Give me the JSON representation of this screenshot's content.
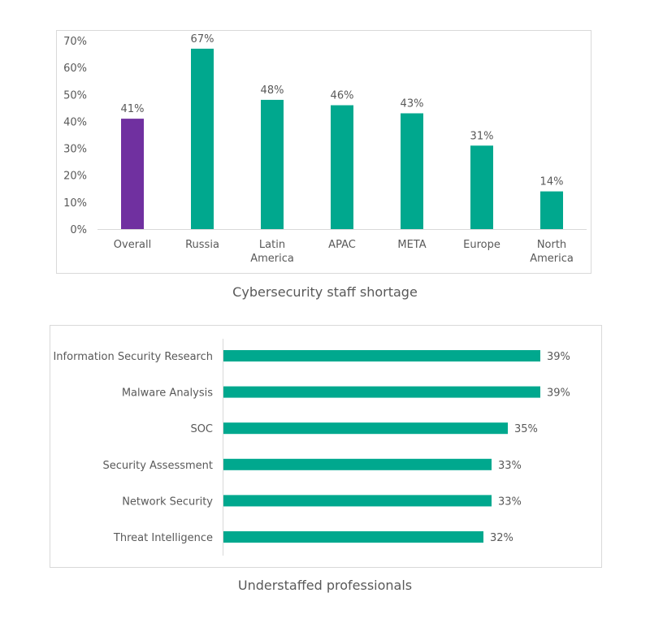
{
  "colors": {
    "primary": "#00a88e",
    "highlight": "#7030a0",
    "text": "#595959",
    "frame": "#d9d9d9"
  },
  "chart_data": [
    {
      "type": "bar",
      "title": "Cybersecurity staff shortage",
      "categories": [
        "Overall",
        "Russia",
        "Latin America",
        "APAC",
        "META",
        "Europe",
        "North America"
      ],
      "category_lines": [
        [
          "Overall"
        ],
        [
          "Russia"
        ],
        [
          "Latin",
          "America"
        ],
        [
          "APAC"
        ],
        [
          "META"
        ],
        [
          "Europe"
        ],
        [
          "North",
          "America"
        ]
      ],
      "values": [
        41,
        67,
        48,
        46,
        43,
        31,
        14
      ],
      "data_labels": [
        "41%",
        "67%",
        "48%",
        "46%",
        "43%",
        "31%",
        "14%"
      ],
      "highlight_index": 0,
      "ylim": [
        0,
        70
      ],
      "yticks": [
        "0%",
        "10%",
        "20%",
        "30%",
        "40%",
        "50%",
        "60%",
        "70%"
      ],
      "grid": false,
      "xlabel": "",
      "ylabel": ""
    },
    {
      "type": "bar",
      "orientation": "horizontal",
      "title": "Understaffed professionals",
      "categories": [
        "Information Security Research",
        "Malware Analysis",
        "SOC",
        "Security Assessment",
        "Network Security",
        "Threat Intelligence"
      ],
      "values": [
        39,
        39,
        35,
        33,
        33,
        32
      ],
      "data_labels": [
        "39%",
        "39%",
        "35%",
        "33%",
        "33%",
        "32%"
      ],
      "grid": false,
      "xlabel": "",
      "ylabel": ""
    }
  ]
}
